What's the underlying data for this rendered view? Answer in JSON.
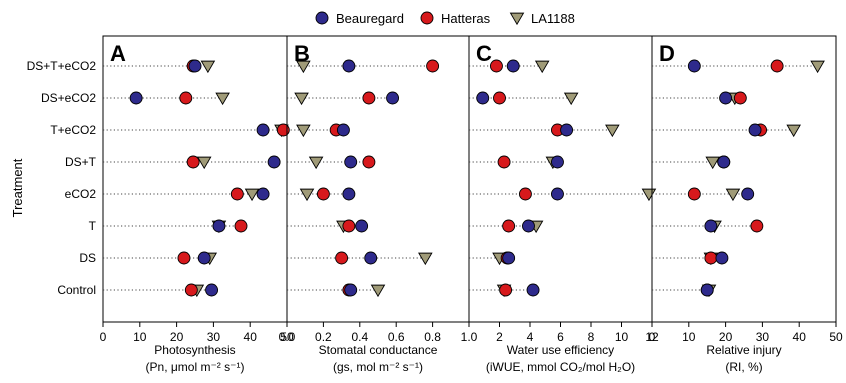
{
  "legend": {
    "items": [
      {
        "name": "Beauregard",
        "shape": "circle",
        "color": "#2e2a8c"
      },
      {
        "name": "Hatteras",
        "shape": "circle",
        "color": "#d7191c"
      },
      {
        "name": "LA1188",
        "shape": "triangle",
        "color": "#a09b78"
      }
    ]
  },
  "y_axis_title": "Treatment",
  "categories": [
    "DS+T+eCO2",
    "DS+eCO2",
    "T+eCO2",
    "DS+T",
    "eCO2",
    "T",
    "DS",
    "Control"
  ],
  "chart_data": [
    {
      "type": "scatter",
      "panel_letter": "A",
      "xlabel_line1": "Photosynthesis",
      "xlabel_line2": "(Pn, μmol m⁻² s⁻¹)",
      "xlim": [
        0,
        50
      ],
      "xticks": [
        "0",
        "10",
        "20",
        "30",
        "40",
        "50"
      ],
      "tick_values": [
        0,
        10,
        20,
        30,
        40,
        50
      ],
      "series": [
        {
          "name": "Beauregard",
          "values": [
            25,
            9,
            43.5,
            46.5,
            43.5,
            31.5,
            27.5,
            29.5
          ]
        },
        {
          "name": "Hatteras",
          "values": [
            24.5,
            22.5,
            49,
            24.5,
            36.5,
            37.5,
            22,
            24
          ]
        },
        {
          "name": "LA1188",
          "values": [
            28.5,
            32.5,
            48.5,
            27.5,
            40.5,
            31.5,
            29,
            25.5
          ]
        }
      ]
    },
    {
      "type": "scatter",
      "panel_letter": "B",
      "xlabel_line1": "Stomatal conductance",
      "xlabel_line2": "(gs, mol m⁻² s⁻¹)",
      "xlim": [
        0,
        1.0
      ],
      "xticks": [
        "0.0",
        "0.2",
        "0.4",
        "0.6",
        "0.8",
        "1.0"
      ],
      "tick_values": [
        0,
        0.2,
        0.4,
        0.6,
        0.8,
        1.0
      ],
      "series": [
        {
          "name": "Beauregard",
          "values": [
            0.34,
            0.58,
            0.31,
            0.35,
            0.34,
            0.41,
            0.46,
            0.35
          ]
        },
        {
          "name": "Hatteras",
          "values": [
            0.8,
            0.45,
            0.27,
            0.45,
            0.2,
            0.34,
            0.3,
            0.34
          ]
        },
        {
          "name": "LA1188",
          "values": [
            0.09,
            0.08,
            0.09,
            0.16,
            0.11,
            0.31,
            0.76,
            0.5
          ]
        }
      ]
    },
    {
      "type": "scatter",
      "panel_letter": "C",
      "xlabel_line1": "Water use efficiency",
      "xlabel_line2": "(iWUE, mmol CO₂/mol H₂O)",
      "xlim": [
        0,
        12
      ],
      "xticks": [
        "2",
        "4",
        "6",
        "8",
        "10",
        "12"
      ],
      "tick_values": [
        2,
        4,
        6,
        8,
        10,
        12
      ],
      "series": [
        {
          "name": "Beauregard",
          "values": [
            2.9,
            0.9,
            6.4,
            5.8,
            5.8,
            3.9,
            2.6,
            4.2
          ]
        },
        {
          "name": "Hatteras",
          "values": [
            1.8,
            2.0,
            5.8,
            2.3,
            3.7,
            2.6,
            2.5,
            2.4
          ]
        },
        {
          "name": "LA1188",
          "values": [
            4.8,
            6.7,
            9.4,
            5.5,
            11.8,
            4.4,
            2.0,
            2.3
          ]
        }
      ]
    },
    {
      "type": "scatter",
      "panel_letter": "D",
      "xlabel_line1": "Relative injury",
      "xlabel_line2": "(RI, %)",
      "xlim": [
        0,
        50
      ],
      "xticks": [
        "0",
        "10",
        "20",
        "30",
        "40",
        "50"
      ],
      "tick_values": [
        0,
        10,
        20,
        30,
        40,
        50
      ],
      "series": [
        {
          "name": "Beauregard",
          "values": [
            11.5,
            20,
            28,
            19.5,
            26,
            16,
            19,
            15
          ]
        },
        {
          "name": "Hatteras",
          "values": [
            34,
            24,
            29.5,
            19.5,
            11.5,
            28.5,
            16,
            15
          ]
        },
        {
          "name": "LA1188",
          "values": [
            45,
            22.5,
            38.5,
            16.5,
            22,
            17,
            16,
            15.5
          ]
        }
      ]
    }
  ]
}
